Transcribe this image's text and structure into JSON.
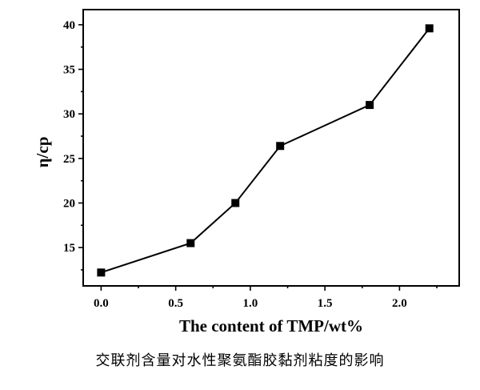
{
  "chart_data": {
    "type": "line",
    "xlabel": "The content of TMP/wt%",
    "ylabel": "η/cp",
    "xlim": [
      -0.12,
      2.4
    ],
    "ylim": [
      10.7,
      41.7
    ],
    "xticks": [
      0.0,
      0.5,
      1.0,
      1.5,
      2.0
    ],
    "xtick_labels": [
      "0.0",
      "0.5",
      "1.0",
      "1.5",
      "2.0"
    ],
    "yticks": [
      15,
      20,
      25,
      30,
      35,
      40
    ],
    "ytick_labels": [
      "15",
      "20",
      "25",
      "30",
      "35",
      "40"
    ],
    "grid": false,
    "legend": "none",
    "series": [
      {
        "marker": "square",
        "color": "#000000",
        "x": [
          0.0,
          0.6,
          0.9,
          1.2,
          1.8,
          2.2
        ],
        "y": [
          12.2,
          15.5,
          20.0,
          26.4,
          31.0,
          39.6
        ]
      }
    ]
  },
  "caption": "交联剂含量对水性聚氨酯胶黏剂粘度的影响"
}
